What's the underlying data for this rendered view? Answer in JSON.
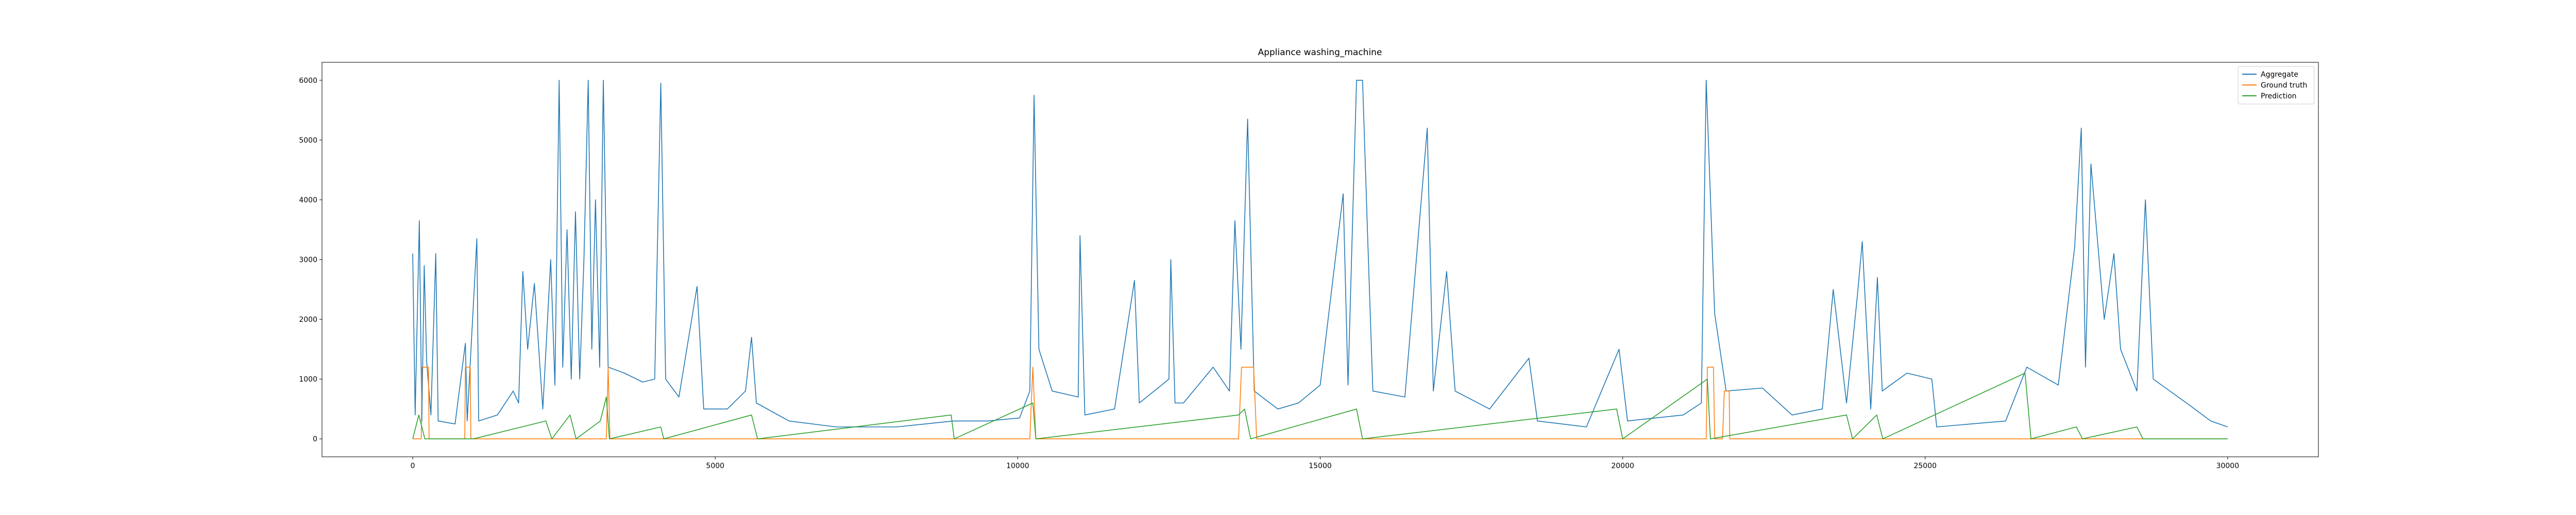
{
  "chart_data": {
    "type": "line",
    "title": "Appliance washing_machine",
    "xlim": [
      -1500,
      31500
    ],
    "xticks": [
      0,
      5000,
      10000,
      15000,
      20000,
      25000,
      30000
    ],
    "ylim": [
      -300,
      6300
    ],
    "yticks": [
      0,
      1000,
      2000,
      3000,
      4000,
      5000,
      6000
    ],
    "legend": "upper right",
    "series": [
      {
        "name": "Aggregate",
        "color": "#1f77b4",
        "x": [
          0,
          40,
          109,
          150,
          190,
          230,
          300,
          380,
          420,
          700,
          870,
          900,
          1060,
          1090,
          1400,
          1660,
          1750,
          1820,
          1900,
          2010,
          2150,
          2280,
          2350,
          2420,
          2480,
          2550,
          2620,
          2690,
          2760,
          2830,
          2900,
          2960,
          3020,
          3090,
          3150,
          3230,
          3500,
          3800,
          4000,
          4100,
          4180,
          4400,
          4700,
          4810,
          5200,
          5500,
          5600,
          5680,
          6220,
          7000,
          8000,
          8940,
          9500,
          10030,
          10200,
          10270,
          10350,
          10570,
          11000,
          11030,
          11110,
          11600,
          11930,
          12010,
          12500,
          12530,
          12600,
          12740,
          13230,
          13500,
          13590,
          13690,
          13800,
          13910,
          14300,
          14640,
          15000,
          15380,
          15460,
          15600,
          15700,
          15790,
          15870,
          16400,
          16770,
          16870,
          17090,
          17230,
          17800,
          18450,
          18590,
          19400,
          19940,
          20080,
          21000,
          21300,
          21380,
          21520,
          21710,
          22310,
          22800,
          23300,
          23480,
          23700,
          23880,
          23960,
          24100,
          24210,
          24290,
          24700,
          25110,
          25190,
          26330,
          26680,
          27200,
          27470,
          27580,
          27650,
          27740,
          27960,
          28120,
          28230,
          28500,
          28640,
          28770,
          29320,
          29720,
          30000
        ],
        "values": [
          3100,
          400,
          3650,
          300,
          2900,
          1300,
          400,
          3100,
          300,
          250,
          1600,
          300,
          3350,
          300,
          400,
          800,
          600,
          2800,
          1500,
          2600,
          500,
          3000,
          900,
          6000,
          1200,
          3500,
          1000,
          3800,
          1000,
          3000,
          6000,
          1500,
          4000,
          1200,
          6000,
          1200,
          1100,
          950,
          1000,
          5950,
          1000,
          700,
          2550,
          500,
          500,
          800,
          1700,
          600,
          300,
          200,
          200,
          300,
          300,
          350,
          800,
          5750,
          1500,
          800,
          700,
          3400,
          400,
          500,
          2650,
          600,
          1000,
          3000,
          600,
          600,
          1200,
          800,
          3650,
          1500,
          5350,
          800,
          500,
          600,
          900,
          4100,
          900,
          6000,
          6000,
          3200,
          800,
          700,
          5200,
          800,
          2800,
          800,
          500,
          1350,
          300,
          200,
          1500,
          300,
          400,
          600,
          6000,
          2100,
          800,
          850,
          400,
          500,
          2500,
          600,
          2400,
          3300,
          500,
          2700,
          800,
          1100,
          1000,
          200,
          300,
          1200,
          900,
          3200,
          5200,
          1200,
          4600,
          2000,
          3100,
          1500,
          800,
          4000,
          1000,
          600,
          300,
          200
        ]
      },
      {
        "name": "Ground truth",
        "color": "#ff7f0e",
        "x": [
          0,
          140,
          150,
          260,
          270,
          860,
          870,
          950,
          960,
          3200,
          3230,
          3260,
          10200,
          10250,
          10300,
          13650,
          13700,
          13900,
          13950,
          21380,
          21400,
          21500,
          21520,
          21650,
          21680,
          21760,
          21770,
          30000
        ],
        "values": [
          0,
          0,
          1200,
          1200,
          0,
          0,
          1200,
          1200,
          0,
          0,
          1200,
          0,
          0,
          1200,
          0,
          0,
          1200,
          1200,
          0,
          0,
          1200,
          1200,
          0,
          0,
          800,
          800,
          0,
          0
        ]
      },
      {
        "name": "Prediction",
        "color": "#2ca02c",
        "x": [
          0,
          100,
          200,
          1000,
          2200,
          2300,
          2600,
          2700,
          3100,
          3200,
          3250,
          4100,
          4150,
          5600,
          5700,
          8900,
          8950,
          10250,
          10300,
          13650,
          13750,
          13850,
          15600,
          15700,
          19900,
          20000,
          21400,
          21450,
          23700,
          23800,
          24200,
          24300,
          26650,
          26750,
          27500,
          27600,
          28500,
          28600,
          30000
        ],
        "values": [
          0,
          400,
          0,
          0,
          300,
          0,
          400,
          0,
          300,
          700,
          0,
          200,
          0,
          400,
          0,
          400,
          0,
          600,
          0,
          400,
          500,
          0,
          500,
          0,
          500,
          0,
          1000,
          0,
          400,
          0,
          400,
          0,
          1100,
          0,
          200,
          0,
          200,
          0,
          0
        ]
      }
    ]
  }
}
